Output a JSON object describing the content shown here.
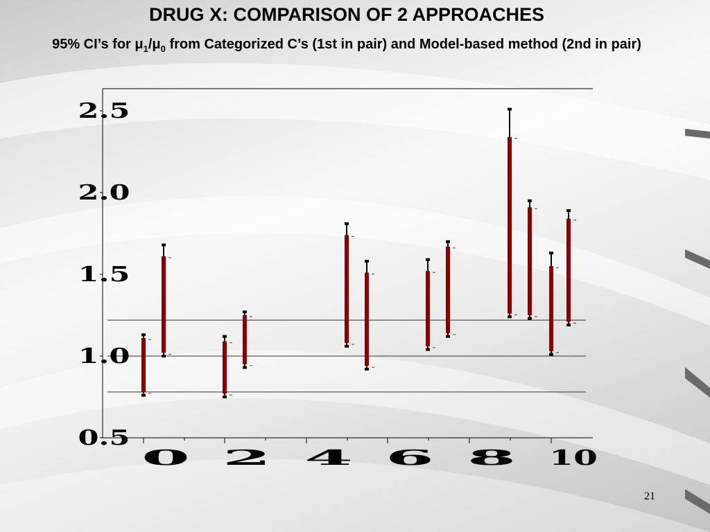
{
  "slide": {
    "title": "DRUG X: COMPARISON OF 2 APPROACHES",
    "subtitle_prefix": "95% CI’s for ",
    "subtitle_mu1": "μ",
    "subtitle_sub1": "1",
    "subtitle_slash": "/",
    "subtitle_mu0": "μ",
    "subtitle_sub0": "0",
    "subtitle_suffix": " from Categorized C’s (1st in pair) and Model-based method (2nd in pair)",
    "page_number": "21"
  },
  "chart_data": {
    "type": "errorbar",
    "title": "DRUG X: COMPARISON OF 2 APPROACHES",
    "subtitle": "95% CI’s for μ1/μ0 from Categorized C’s (1st in pair) and Model-based method (2nd in pair)",
    "xlabel": "",
    "ylabel": "",
    "xlim": [
      0,
      10.4
    ],
    "ylim": [
      0.5,
      2.65
    ],
    "x_ticks": [
      0,
      2,
      4,
      6,
      8,
      10
    ],
    "x_tick_labels": [
      "0",
      "2",
      "4",
      "6",
      "8",
      "10"
    ],
    "y_ticks": [
      0.5,
      1.0,
      1.5,
      2.0,
      2.5
    ],
    "y_tick_labels": [
      "0.5",
      "1.0",
      "1.5",
      "2.0",
      "2.5"
    ],
    "reference_lines_y": [
      0.78,
      1.0,
      1.22
    ],
    "grid": false,
    "legend": "none",
    "colors": {
      "inner_bar": "#8b0000",
      "outer_whisker": "#000000"
    },
    "series": [
      {
        "name": "",
        "x": [
          0,
          1,
          4,
          5,
          8,
          9
        ],
        "low": [
          0.78,
          1.02,
          1.08,
          0.94,
          1.26,
          1.25
        ],
        "high": [
          1.11,
          1.61,
          1.74,
          1.51,
          2.34,
          1.91
        ]
      },
      {
        "name": "",
        "x": [
          2,
          3,
          6,
          7,
          10,
          11
        ],
        "low": [
          0.77,
          0.95,
          1.06,
          1.14,
          1.03,
          1.21
        ],
        "high": [
          1.09,
          1.25,
          1.52,
          1.67,
          1.55,
          1.84
        ]
      }
    ],
    "outer_intervals": [
      {
        "x": 0,
        "low": 0.76,
        "high": 1.13
      },
      {
        "x": 1,
        "low": 1.0,
        "high": 1.68
      },
      {
        "x": 4,
        "low": 1.06,
        "high": 1.81
      },
      {
        "x": 5,
        "low": 0.92,
        "high": 1.58
      },
      {
        "x": 8,
        "low": 1.24,
        "high": 2.51
      },
      {
        "x": 9,
        "low": 1.23,
        "high": 1.95
      },
      {
        "x": 2,
        "low": 0.75,
        "high": 1.12
      },
      {
        "x": 3,
        "low": 0.93,
        "high": 1.27
      },
      {
        "x": 6,
        "low": 1.04,
        "high": 1.59
      },
      {
        "x": 7,
        "low": 1.12,
        "high": 1.7
      },
      {
        "x": 10,
        "low": 1.01,
        "high": 1.63
      },
      {
        "x": 11,
        "low": 1.19,
        "high": 1.89
      }
    ]
  }
}
